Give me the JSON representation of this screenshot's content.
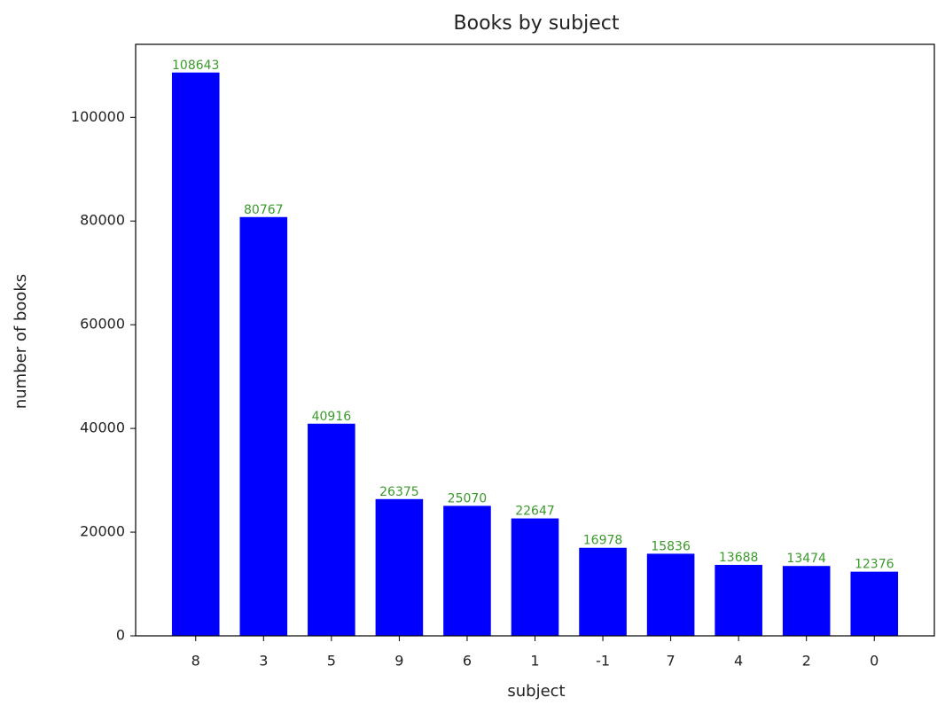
{
  "chart_data": {
    "type": "bar",
    "title": "Books by subject",
    "x_label": "subject",
    "y_label": "number of books",
    "categories": [
      "8",
      "3",
      "5",
      "9",
      "6",
      "1",
      "-1",
      "7",
      "4",
      "2",
      "0"
    ],
    "values": [
      108643,
      80767,
      40916,
      26375,
      25070,
      22647,
      16978,
      15836,
      13688,
      13474,
      12376
    ],
    "color": "blue",
    "value_label_color": "#3a9a2a",
    "ylim": [
      0,
      114075
    ],
    "yticks": [
      0,
      20000,
      40000,
      60000,
      80000,
      100000
    ],
    "grid": false
  }
}
